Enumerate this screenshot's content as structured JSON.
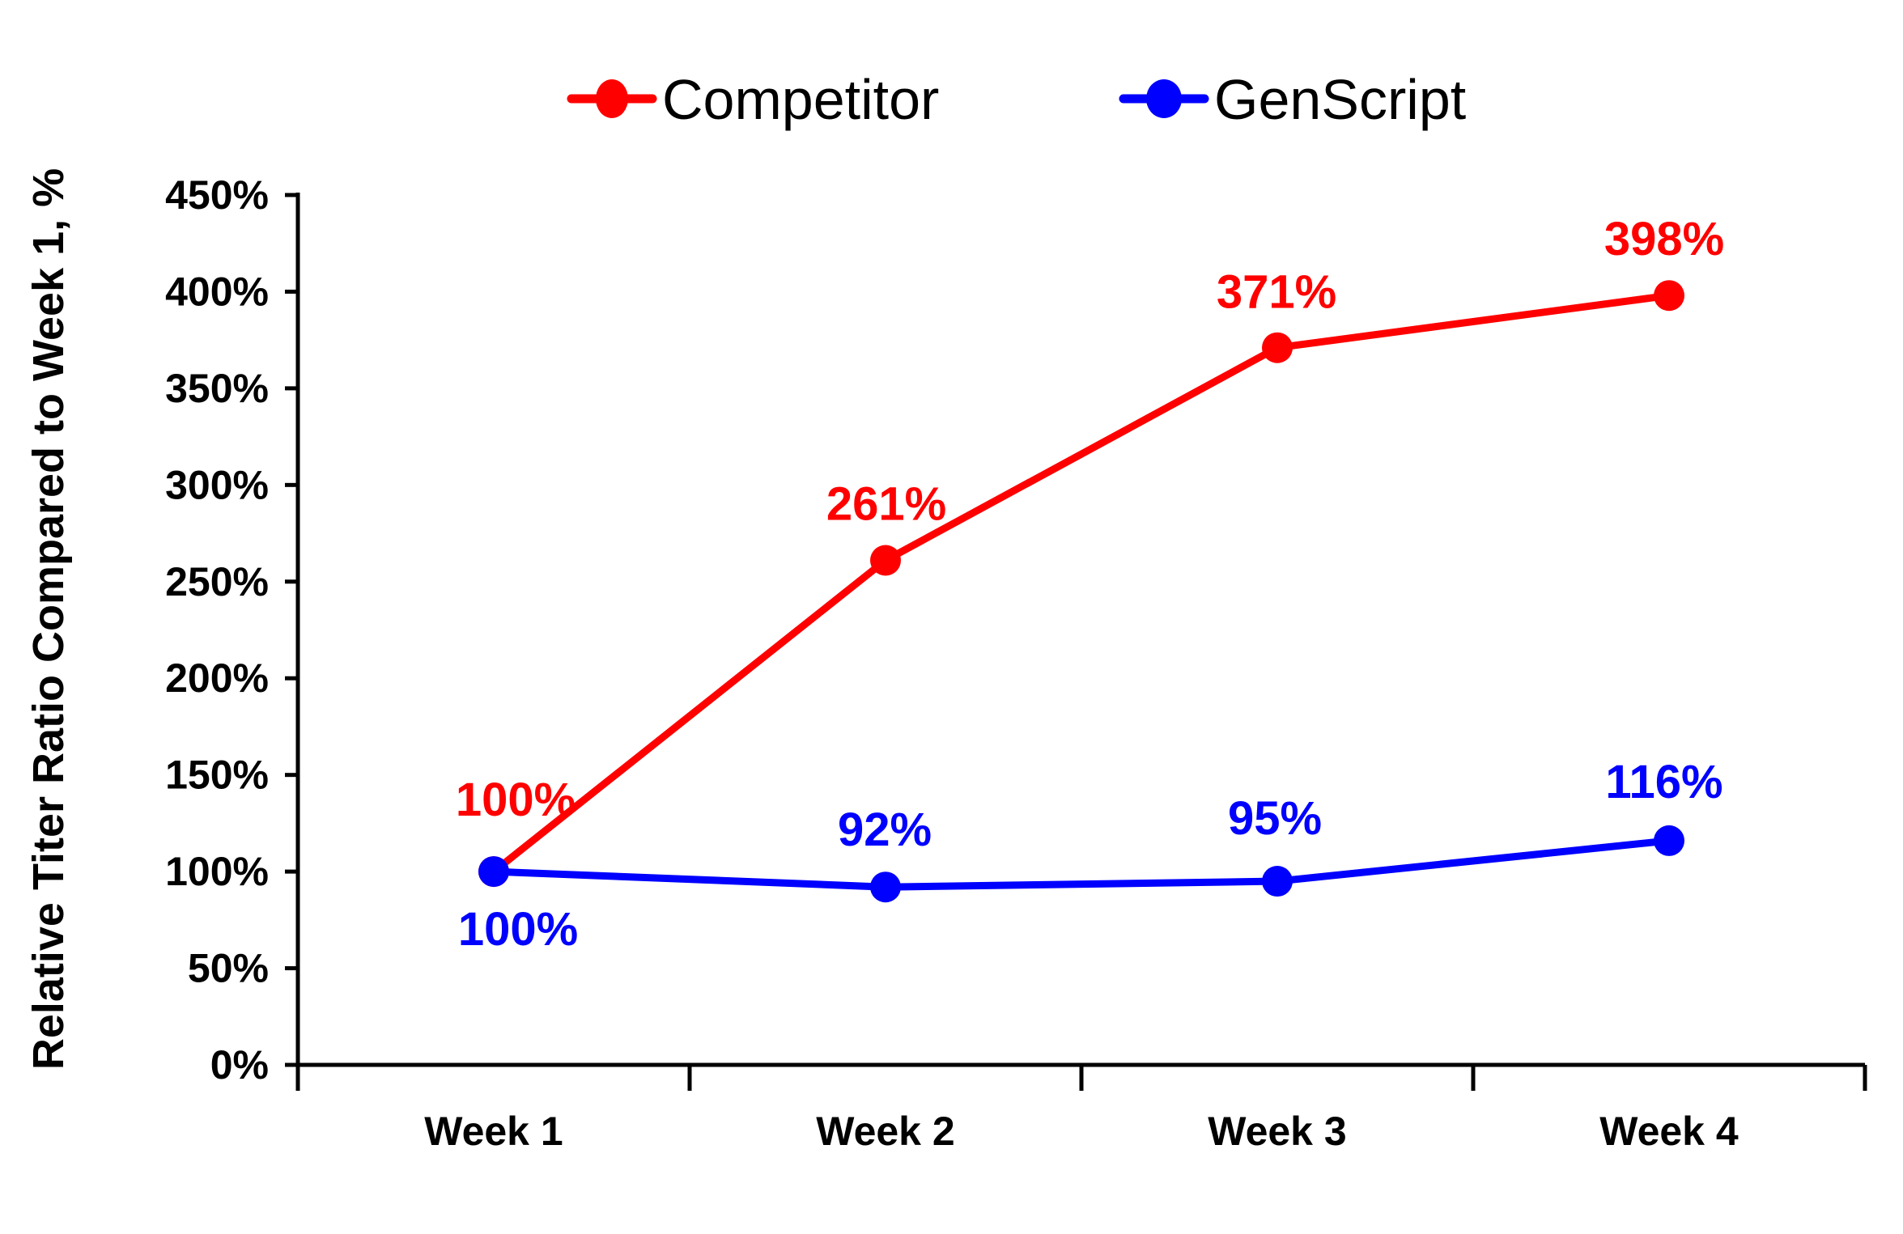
{
  "chart_data": {
    "type": "line",
    "title": "",
    "xlabel": "",
    "ylabel": "Relative Titer Ratio Compared to Week 1, %",
    "categories": [
      "Week 1",
      "Week 2",
      "Week 3",
      "Week 4"
    ],
    "series": [
      {
        "name": "Competitor",
        "color": "#FF0000",
        "values": [
          100,
          261,
          371,
          398
        ],
        "point_labels": [
          "100%",
          "261%",
          "371%",
          "398%"
        ],
        "label_offsets": [
          [
            27,
            -69
          ],
          [
            1,
            -50
          ],
          [
            -1,
            -49
          ],
          [
            -6,
            -50
          ]
        ]
      },
      {
        "name": "GenScript",
        "color": "#0000FF",
        "values": [
          100,
          92,
          95,
          116
        ],
        "point_labels": [
          "100%",
          "92%",
          "95%",
          "116%"
        ],
        "label_offsets": [
          [
            30,
            91
          ],
          [
            -1,
            -51
          ],
          [
            -3,
            -58
          ],
          [
            -6,
            -53
          ]
        ]
      }
    ],
    "ylim": [
      0,
      450
    ],
    "ytick_step": 50,
    "yticks": [
      "0%",
      "50%",
      "100%",
      "150%",
      "200%",
      "250%",
      "300%",
      "350%",
      "400%",
      "450%"
    ],
    "grid": false,
    "legend_position": "top-center",
    "background_color": "#FFFFFF",
    "axis_color": "#000000"
  }
}
